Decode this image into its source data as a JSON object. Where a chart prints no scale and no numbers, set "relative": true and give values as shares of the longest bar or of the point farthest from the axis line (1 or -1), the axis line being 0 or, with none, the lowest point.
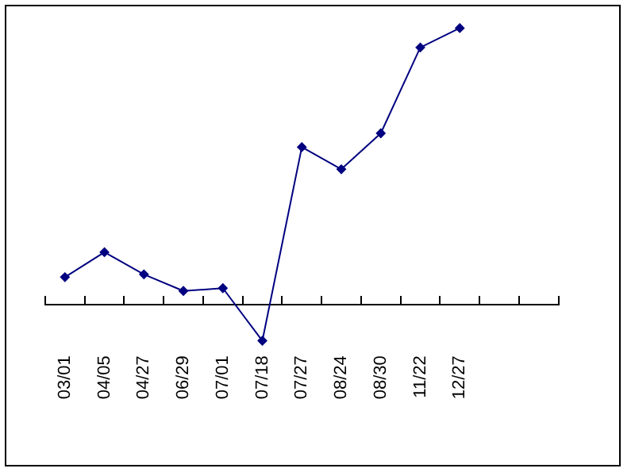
{
  "chart_data": {
    "type": "line",
    "relative": true,
    "categories": [
      "03/01",
      "04/05",
      "04/27",
      "06/29",
      "07/01",
      "07/18",
      "07/27",
      "08/24",
      "08/30",
      "11/22",
      "12/27",
      null,
      null
    ],
    "series": [
      {
        "color": "#000080",
        "values": [
          0.1,
          0.19,
          0.11,
          0.05,
          0.06,
          -0.13,
          0.57,
          0.49,
          0.62,
          0.93,
          1,
          null,
          null
        ]
      }
    ],
    "marker": "diamond",
    "line_style": "solid",
    "grid": false,
    "legend": false
  }
}
